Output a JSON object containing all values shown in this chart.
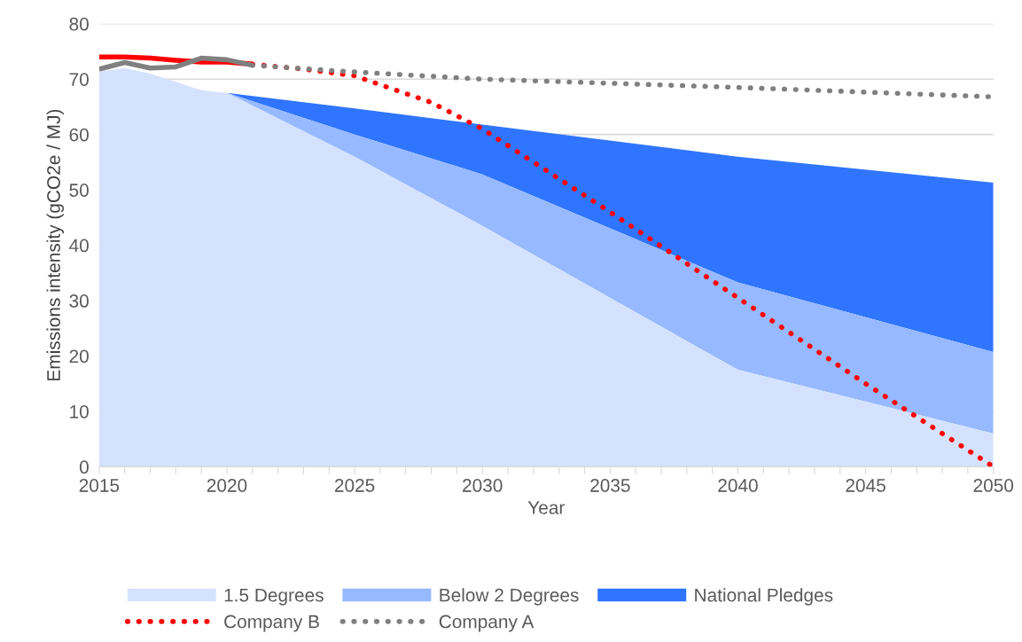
{
  "chart_data": {
    "type": "area",
    "xlabel": "Year",
    "ylabel": "Emissions intensity (gCO2e / MJ)",
    "xlim": [
      2015,
      2050
    ],
    "ylim": [
      0,
      80
    ],
    "yticks": [
      0,
      10,
      20,
      30,
      40,
      50,
      60,
      70,
      80
    ],
    "xticks": [
      2015,
      {
        "value": 2016,
        "label": null
      },
      {
        "value": 2017,
        "label": null
      },
      {
        "value": 2018,
        "label": null
      },
      {
        "value": 2019,
        "label": null
      },
      2020,
      {
        "value": 2021,
        "label": null
      },
      {
        "value": 2022,
        "label": null
      },
      {
        "value": 2023,
        "label": null
      },
      {
        "value": 2024,
        "label": null
      },
      2025,
      {
        "value": 2026,
        "label": null
      },
      {
        "value": 2027,
        "label": null
      },
      {
        "value": 2028,
        "label": null
      },
      {
        "value": 2029,
        "label": null
      },
      2030,
      {
        "value": 2031,
        "label": null
      },
      {
        "value": 2032,
        "label": null
      },
      {
        "value": 2033,
        "label": null
      },
      {
        "value": 2034,
        "label": null
      },
      2035,
      {
        "value": 2036,
        "label": null
      },
      {
        "value": 2037,
        "label": null
      },
      {
        "value": 2038,
        "label": null
      },
      {
        "value": 2039,
        "label": null
      },
      2040,
      {
        "value": 2041,
        "label": null
      },
      {
        "value": 2042,
        "label": null
      },
      {
        "value": 2043,
        "label": null
      },
      {
        "value": 2044,
        "label": null
      },
      2045,
      {
        "value": 2046,
        "label": null
      },
      {
        "value": 2047,
        "label": null
      },
      {
        "value": 2048,
        "label": null
      },
      {
        "value": 2049,
        "label": null
      },
      2050
    ],
    "grid": "y",
    "legend": "bottom",
    "series": [
      {
        "name": "National Pledges",
        "color": "#2f75ff",
        "x": [
          2020,
          2025,
          2030,
          2040,
          2050
        ],
        "values": [
          67.5,
          64.7,
          61.8,
          56,
          51.3
        ]
      },
      {
        "name": "Below 2 Degrees",
        "color": "#97b9ff",
        "x": [
          2020,
          2025,
          2030,
          2040,
          2050
        ],
        "values": [
          67.5,
          60,
          52.8,
          33.3,
          20.7
        ]
      },
      {
        "name": "1.5 Degrees",
        "color": "#d5e2fd",
        "x": [
          2015,
          2016,
          2017,
          2018,
          2019,
          2020,
          2025,
          2030,
          2040,
          2050
        ],
        "values": [
          71.3,
          72,
          71,
          69.5,
          68,
          67.5,
          56,
          43.5,
          17.5,
          6
        ]
      },
      {
        "type": "line",
        "color": "#ff0000",
        "line_style": "solid",
        "x": [
          2015,
          2016,
          2017,
          2018,
          2019,
          2020,
          2021
        ],
        "values": [
          74,
          74,
          73.8,
          73.4,
          73.1,
          73.1,
          72.7
        ]
      },
      {
        "name": "Company B",
        "type": "line",
        "color": "#ff0000",
        "line_style": "dotted",
        "x": [
          2021,
          2023,
          2025,
          2026,
          2028,
          2030,
          2035,
          2040,
          2045,
          2050
        ],
        "values": [
          72.7,
          71.8,
          70.6,
          69,
          65.8,
          61,
          46,
          30.5,
          15,
          0
        ]
      },
      {
        "type": "line",
        "color": "#808080",
        "line_style": "solid",
        "x": [
          2015,
          2016,
          2017,
          2018,
          2019,
          2020,
          2021
        ],
        "values": [
          71.8,
          73,
          72,
          72.2,
          73.8,
          73.5,
          72.5
        ]
      },
      {
        "name": "Company A",
        "type": "line",
        "color": "#808080",
        "line_style": "dotted",
        "x": [
          2021,
          2025,
          2030,
          2040,
          2050
        ],
        "values": [
          72.5,
          71.3,
          70,
          68.5,
          66.8
        ]
      }
    ]
  }
}
